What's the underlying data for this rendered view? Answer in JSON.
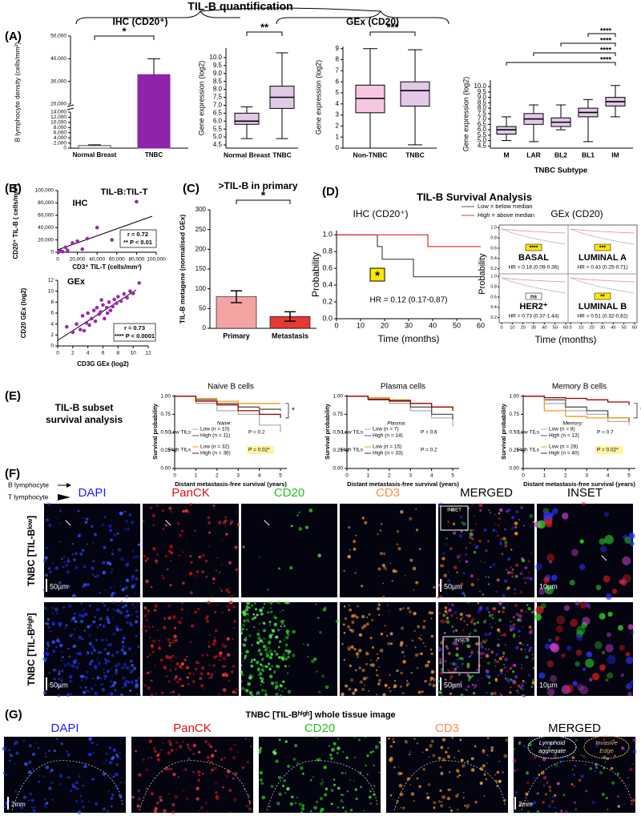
{
  "header": {
    "title": "TIL-B quantification",
    "ihc": "IHC (CD20⁺)",
    "gex": "GEx (CD20)"
  },
  "panel_labels": {
    "A": "(A)",
    "B": "(B)",
    "C": "(C)",
    "D": "(D)",
    "E": "(E)",
    "F": "(F)",
    "G": "(G)"
  },
  "A": {
    "ihc": {
      "type": "bar",
      "ylabel": "B lymphocyte density (cells/mm²)",
      "categories": [
        "Normal Breast",
        "TNBC"
      ],
      "values": [
        1000,
        33000
      ],
      "errors": [
        300,
        7000
      ],
      "colors": [
        "#444444",
        "#8e24aa"
      ],
      "ylim": [
        0,
        50000
      ],
      "ybreak": [
        14000,
        20000
      ],
      "yticks": [
        0,
        {
          "value": 2000,
          "label": "2,000"
        },
        {
          "value": 4000,
          "label": "4,000"
        },
        {
          "value": 6000,
          "label": "6,000"
        },
        {
          "value": 8000,
          "label": "8,000"
        },
        {
          "value": 10000,
          "label": "10,000"
        },
        {
          "value": 12000,
          "label": "12,000"
        },
        {
          "value": 14000,
          "label": "14,000"
        },
        {
          "value": 20000,
          "label": "20,000"
        },
        {
          "value": 30000,
          "label": "30,000"
        },
        {
          "value": 40000,
          "label": "40,000"
        },
        {
          "value": 50000,
          "label": "50,000"
        }
      ],
      "significance": "*"
    },
    "gex_normal": {
      "type": "box",
      "ylabel": "Gene expression (log2)",
      "categories": [
        "Normal Breast",
        "TNBC"
      ],
      "color": "#8e24aa",
      "boxes": [
        {
          "whislo": 4.9,
          "q1": 5.8,
          "median": 6.0,
          "q3": 6.5,
          "whishi": 6.9
        },
        {
          "whislo": 4.9,
          "q1": 6.8,
          "median": 7.5,
          "q3": 8.2,
          "whishi": 10.3
        }
      ],
      "ylim": [
        4.3,
        10.6
      ],
      "yticks": [
        4.5,
        {
          "value": 5,
          "label": "5.0"
        },
        5.5,
        {
          "value": 6,
          "label": "6.0"
        },
        6.5,
        {
          "value": 7,
          "label": "7.0"
        },
        7.5,
        {
          "value": 8,
          "label": "8.0"
        },
        8.5,
        {
          "value": 9,
          "label": "9.0"
        },
        9.5,
        {
          "value": 10,
          "label": "10.0"
        }
      ],
      "significance": "**"
    },
    "gex_tnbc": {
      "type": "box",
      "ylabel": "Gene expression (log2)",
      "categories": [
        "Non-TNBC",
        "TNBC"
      ],
      "colors": [
        "#e0218a",
        "#8e24aa"
      ],
      "boxes": [
        {
          "whislo": 0,
          "q1": 3.2,
          "median": 4.5,
          "q3": 5.7,
          "whishi": 9.0
        },
        {
          "whislo": 0.3,
          "q1": 3.8,
          "median": 5.2,
          "q3": 6.0,
          "whishi": 8.9
        }
      ],
      "ylim": [
        0,
        9.2
      ],
      "yticks": [
        0,
        1,
        2,
        3,
        4,
        5,
        6,
        7,
        8,
        9
      ],
      "significance": "***"
    },
    "subtype": {
      "type": "box",
      "ylabel": "Gene expression (log2)",
      "xlabel": "TNBC Subtype",
      "categories": [
        "M",
        "LAR",
        "BL2",
        "BL1",
        "IM"
      ],
      "color": "#8e24aa",
      "boxes": [
        {
          "whislo": 5.0,
          "q1": 5.6,
          "median": 6.0,
          "q3": 6.3,
          "whishi": 7.2
        },
        {
          "whislo": 4.9,
          "q1": 6.5,
          "median": 7.0,
          "q3": 7.5,
          "whishi": 8.3
        },
        {
          "whislo": 6.0,
          "q1": 6.3,
          "median": 6.7,
          "q3": 7.1,
          "whishi": 8.3
        },
        {
          "whislo": 4.9,
          "q1": 7.2,
          "median": 7.6,
          "q3": 8.0,
          "whishi": 8.8
        },
        {
          "whislo": 7.2,
          "q1": 8.2,
          "median": 8.6,
          "q3": 9.0,
          "whishi": 10.1
        }
      ],
      "ylim": [
        4.3,
        10.6
      ],
      "yticks": [
        4.5,
        {
          "value": 5,
          "label": "5.0"
        },
        5.5,
        {
          "value": 6,
          "label": "6.0"
        },
        6.5,
        {
          "value": 7,
          "label": "7.0"
        },
        7.5,
        {
          "value": 8,
          "label": "8.0"
        },
        8.5,
        {
          "value": 9,
          "label": "9.0"
        },
        9.5,
        {
          "value": 10,
          "label": "10.0"
        }
      ],
      "brackets": [
        {
          "pair": [
            "BL1",
            "IM"
          ],
          "label": "****"
        },
        {
          "pair": [
            "BL2",
            "IM"
          ],
          "label": "****"
        },
        {
          "pair": [
            "LAR",
            "IM"
          ],
          "label": "****"
        },
        {
          "pair": [
            "M",
            "IM"
          ],
          "label": "****"
        }
      ]
    }
  },
  "B": {
    "ihc": {
      "type": "scatter",
      "title": "TIL-B:TIL-T",
      "method": "IHC",
      "ylabel": "CD20⁺ TIL-B ( cells/mm²)",
      "xlabel": "CD3⁺ TIL-T (cells/mm³)",
      "color": "#9c27b0",
      "x": [
        1000,
        3000,
        5000,
        8000,
        10000,
        15000,
        20000,
        25000,
        30000,
        40000,
        55000,
        65000,
        80000
      ],
      "y": [
        500,
        2000,
        1000,
        8000,
        3000,
        15000,
        18000,
        5000,
        22000,
        40000,
        20000,
        21000,
        82000
      ],
      "xlim": [
        0,
        100000
      ],
      "ylim": [
        0,
        100000
      ],
      "xticks": [
        0,
        {
          "value": 20000,
          "label": "20,000"
        },
        {
          "value": 40000,
          "label": "40,000"
        },
        {
          "value": 60000,
          "label": "60,000"
        },
        {
          "value": 80000,
          "label": "80,000"
        },
        {
          "value": 100000,
          "label": "100,000"
        }
      ],
      "yticks": [
        0,
        {
          "value": 20000,
          "label": "20,000"
        },
        {
          "value": 40000,
          "label": "40,000"
        },
        {
          "value": 60000,
          "label": "60,000"
        },
        {
          "value": 80000,
          "label": "80,000"
        },
        {
          "value": 100000,
          "label": "100,000"
        }
      ],
      "stats": [
        "r = 0.72",
        "** P < 0.01"
      ]
    },
    "gex": {
      "type": "scatter",
      "method": "GEx",
      "ylabel": "CD20 GEx (log2)",
      "xlabel": "CD3G GEx (log2)",
      "color": "#9c27b0",
      "x": [
        1.2,
        2.0,
        2.5,
        3.0,
        3.3,
        3.8,
        4.0,
        4.2,
        4.5,
        4.8,
        5.0,
        5.2,
        5.5,
        5.7,
        6.0,
        6.2,
        6.5,
        6.8,
        7.0,
        7.3,
        7.5,
        7.8,
        8.0,
        8.4,
        8.8,
        9.2,
        9.6,
        10.0,
        10.8,
        3.5,
        5.8,
        6.6
      ],
      "y": [
        3.5,
        2.5,
        4.0,
        3.0,
        5.5,
        4.2,
        6.0,
        3.8,
        5.0,
        6.5,
        4.5,
        7.0,
        5.8,
        6.2,
        7.5,
        5.0,
        7.0,
        8.0,
        6.5,
        7.2,
        8.5,
        7.8,
        9.0,
        8.2,
        9.5,
        8.8,
        10.0,
        9.6,
        11.5,
        2.8,
        8.4,
        6.0
      ],
      "xlim": [
        0,
        12
      ],
      "ylim": [
        0,
        12
      ],
      "xticks": [
        0,
        2,
        4,
        6,
        8,
        10,
        12
      ],
      "yticks": [
        0,
        2,
        4,
        6,
        8,
        10,
        12
      ],
      "stats": [
        "r = 0.73",
        "**** P < 0.0001"
      ]
    }
  },
  "C": {
    "type": "bar",
    "title": ">TIL-B in primary",
    "ylabel": "TIL-B metagene (normalised GEx)",
    "categories": [
      "Primary",
      "Metastasis"
    ],
    "values": [
      80,
      30
    ],
    "errors": [
      15,
      12
    ],
    "colors": [
      "#f4a3a3",
      "#e53935"
    ],
    "ylim": [
      0,
      300
    ],
    "yticks": [
      0,
      50,
      100,
      150,
      200,
      250,
      300
    ],
    "significance": "*"
  },
  "D": {
    "title": "TIL-B Survival Analysis",
    "ihc": {
      "type": "line",
      "title": "IHC (CD20⁺)",
      "ylabel": "Probability",
      "xlabel": "Time (months)",
      "series": [
        {
          "name": "Low = below median",
          "color": "#555555",
          "x": [
            0,
            17,
            19,
            25,
            32,
            60
          ],
          "values": [
            1,
            0.86,
            0.71,
            0.71,
            0.5,
            0.5
          ]
        },
        {
          "name": "High = above median",
          "color": "#e53935",
          "x": [
            0,
            38,
            60
          ],
          "values": [
            1,
            0.86,
            0.86
          ]
        }
      ],
      "xlim": [
        0,
        60
      ],
      "ylim": [
        0,
        1.05
      ],
      "xticks": [
        0,
        10,
        20,
        30,
        40,
        50,
        60
      ],
      "yticks": [
        {
          "value": 0,
          "label": "0.0"
        },
        0.2,
        0.4,
        0.6,
        0.8,
        {
          "value": 1,
          "label": "1.0"
        }
      ],
      "significance": "*",
      "hr": "HR = 0.12 (0.17-0.87)"
    },
    "gex": {
      "title": "GEx (CD20)",
      "ylabel": "Probability",
      "xlabel": "Time (months)",
      "yticks": [
        0.2,
        0.4,
        0.6,
        0.8,
        {
          "value": 1,
          "label": "1.0"
        }
      ],
      "xticks": [
        0,
        10,
        20,
        30,
        40,
        50,
        60
      ],
      "cells": [
        {
          "name": "BASAL",
          "significance": "****",
          "hr": "HR = 0.18 (0.09-0.36)"
        },
        {
          "name": "LUMINAL A",
          "significance": "***",
          "hr": "HR = 0.43 (0.25-0.71)"
        },
        {
          "name": "HER2⁺",
          "significance": "ns",
          "hr": "HR = 0.73 (0.37-1.44)"
        },
        {
          "name": "LUMINAL B",
          "significance": "**",
          "hr": "HR = 0.51 (0.32-0.82)"
        }
      ]
    }
  },
  "E": {
    "label": [
      "TIL-B subset",
      "survival analysis"
    ],
    "ylabel": "Survival probability",
    "xlabel": "Distant metastasis-free survival (years)",
    "xlim": [
      0,
      5.3
    ],
    "ylim": [
      0,
      1.02
    ],
    "xticks": [
      0,
      1,
      2,
      3,
      4,
      5
    ],
    "yticks": [
      {
        "value": 0,
        "label": "0.00"
      },
      0.25,
      {
        "value": 0.5,
        "label": "0.50"
      },
      0.75,
      {
        "value": 1,
        "label": "1.00"
      }
    ],
    "groups": [
      "Low TILs",
      "High TILs"
    ],
    "plots": [
      {
        "type": "line",
        "title": "Naive B cells",
        "subset": "Naive:",
        "x": [
          0,
          1,
          2,
          3,
          4,
          5
        ],
        "series": [
          {
            "name": "Low (n = 10)",
            "color": "#b0b0b0",
            "values": [
              1,
              0.9,
              0.8,
              0.75,
              0.6,
              0.5
            ]
          },
          {
            "name": "High (n = 11)",
            "color": "#555555",
            "values": [
              1,
              0.95,
              0.9,
              0.85,
              0.82,
              0.8
            ]
          },
          {
            "name": "Low (n = 32)",
            "color": "#f39c12",
            "values": [
              1,
              0.97,
              0.93,
              0.9,
              0.9,
              0.9
            ]
          },
          {
            "name": "High (n = 36)",
            "color": "#a00000",
            "values": [
              1,
              0.93,
              0.88,
              0.8,
              0.75,
              0.7
            ]
          }
        ],
        "p_values": [
          "P = 0.2",
          "P = 0.02*"
        ],
        "significance": "*"
      },
      {
        "type": "line",
        "title": "Plasma cells",
        "subset": "Plasma:",
        "x": [
          0,
          1,
          2,
          3,
          4,
          5
        ],
        "series": [
          {
            "name": "Low (n = 7)",
            "color": "#b0b0b0",
            "values": [
              1,
              0.98,
              0.9,
              0.8,
              0.7,
              0.58
            ]
          },
          {
            "name": "High (n = 14)",
            "color": "#555555",
            "values": [
              1,
              0.95,
              0.93,
              0.85,
              0.75,
              0.68
            ]
          },
          {
            "name": "Low (n = 15)",
            "color": "#f39c12",
            "values": [
              1,
              0.98,
              0.95,
              0.9,
              0.85,
              0.8
            ]
          },
          {
            "name": "High (n = 33)",
            "color": "#a00000",
            "values": [
              1,
              0.96,
              0.94,
              0.9,
              0.85,
              0.8
            ]
          }
        ],
        "p_values": [
          "P = 0.6",
          "P = 0.2"
        ]
      },
      {
        "type": "line",
        "title": "Memory B cells",
        "subset": "Memory:",
        "x": [
          0,
          1,
          2,
          3,
          4,
          5
        ],
        "series": [
          {
            "name": "Low (n = 8)",
            "color": "#b0b0b0",
            "values": [
              1,
              0.9,
              0.8,
              0.75,
              0.65,
              0.6
            ]
          },
          {
            "name": "High (n = 13)",
            "color": "#555555",
            "values": [
              1,
              0.95,
              0.85,
              0.8,
              0.7,
              0.65
            ]
          },
          {
            "name": "Low (n = 28)",
            "color": "#f39c12",
            "values": [
              1,
              0.8,
              0.72,
              0.7,
              0.7,
              0.7
            ]
          },
          {
            "name": "High (n = 40)",
            "color": "#a00000",
            "values": [
              1,
              0.98,
              0.97,
              0.95,
              0.92,
              0.88
            ]
          }
        ],
        "p_values": [
          "P = 0.7",
          "P = 0.02*"
        ],
        "significance": "*"
      }
    ]
  },
  "F": {
    "legend": [
      "B lymphocyte",
      "T lymphocyte"
    ],
    "columns": [
      "DAPI",
      "PanCK",
      "CD20",
      "CD3",
      "MERGED",
      "INSET"
    ],
    "rows": [
      "TNBC [TIL-Bˡᵒʷ]",
      "TNBC [TIL-Bʰⁱᵍʰ]"
    ],
    "scale_large": "50µm",
    "scale_small": "10µm",
    "inset": "INSET"
  },
  "G": {
    "title": "TNBC [TIL-Bʰⁱᵍʰ] whole tissue image",
    "columns": [
      "DAPI",
      "PanCK",
      "CD20",
      "CD3",
      "MERGED"
    ],
    "scale": "2mm",
    "lymphoid": [
      "Lymphoid",
      "aggregate"
    ],
    "invasive": [
      "Invasive",
      "Edge"
    ]
  }
}
